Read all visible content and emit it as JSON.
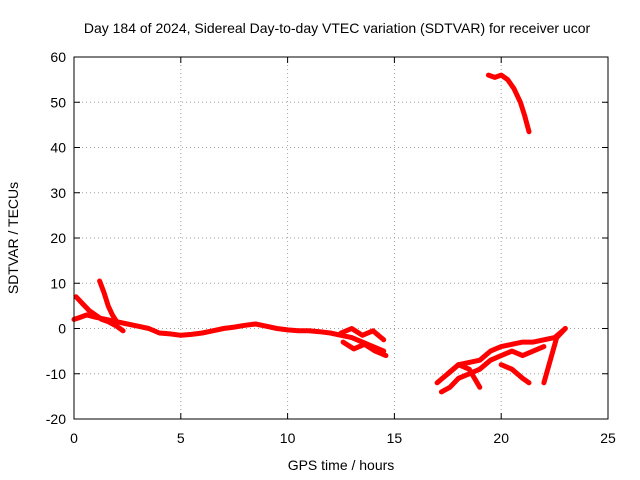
{
  "chart_data": {
    "type": "line",
    "title": "Day 184 of 2024, Sidereal Day-to-day VTEC variation (SDTVAR) for receiver ucor",
    "xlabel": "GPS time / hours",
    "ylabel": "SDTVAR / TECUs",
    "xlim": [
      0,
      25
    ],
    "ylim": [
      -20,
      60
    ],
    "x_ticks": [
      0,
      5,
      10,
      15,
      20,
      25
    ],
    "y_ticks": [
      -20,
      -10,
      0,
      10,
      20,
      30,
      40,
      50,
      60
    ],
    "grid": true,
    "color": "#ff0000",
    "series": [
      {
        "name": "main-arc",
        "x": [
          0,
          0.3,
          0.6,
          1.0,
          1.5,
          2.0,
          2.5,
          3.0,
          3.5,
          4.0,
          4.5,
          5.0,
          5.5,
          6.0,
          6.5,
          7.0,
          7.5,
          8.0,
          8.5,
          9.0,
          9.5,
          10.0,
          10.5,
          11.0,
          11.5,
          12.0,
          12.5,
          13.0,
          13.5,
          14.0,
          14.5
        ],
        "y": [
          2,
          2.5,
          3,
          2.5,
          2,
          1.5,
          1,
          0.5,
          0,
          -1,
          -1.2,
          -1.5,
          -1.3,
          -1,
          -0.5,
          0,
          0.3,
          0.7,
          1,
          0.5,
          0,
          -0.3,
          -0.5,
          -0.5,
          -0.7,
          -1,
          -1.5,
          -2,
          -3,
          -4,
          -5
        ]
      },
      {
        "name": "early-descent",
        "x": [
          0.1,
          0.4,
          0.7,
          1.0,
          1.3,
          1.6,
          2.0,
          2.3
        ],
        "y": [
          7,
          5.5,
          4,
          3,
          2,
          1.5,
          0.5,
          -0.5
        ]
      },
      {
        "name": "early-spike",
        "x": [
          1.2,
          1.4,
          1.6,
          1.8,
          2.0
        ],
        "y": [
          10.5,
          8,
          5,
          3,
          1.5
        ]
      },
      {
        "name": "late-noise-upper",
        "x": [
          12.5,
          13.0,
          13.5,
          14.0,
          14.5
        ],
        "y": [
          -1,
          0,
          -1.5,
          -0.5,
          -2.5
        ]
      },
      {
        "name": "late-noise-lower",
        "x": [
          12.6,
          13.1,
          13.6,
          14.1,
          14.6
        ],
        "y": [
          -3,
          -4.5,
          -3.5,
          -5,
          -6
        ]
      },
      {
        "name": "evening-arc-1",
        "x": [
          17.0,
          17.5,
          18.0,
          18.5,
          19.0,
          19.5,
          20.0,
          20.5,
          21.0,
          21.5,
          22.0,
          22.5,
          23.0
        ],
        "y": [
          -12,
          -10,
          -8,
          -7.5,
          -7,
          -5,
          -4,
          -3.5,
          -3,
          -3,
          -2.5,
          -2,
          0
        ]
      },
      {
        "name": "evening-arc-2",
        "x": [
          17.2,
          17.6,
          18.0,
          18.5,
          19.0,
          19.5,
          20.0,
          20.5,
          21.0,
          21.5,
          22.0
        ],
        "y": [
          -14,
          -13,
          -11,
          -10,
          -9,
          -7,
          -6,
          -5,
          -6,
          -5,
          -4
        ]
      },
      {
        "name": "evening-arc-3",
        "x": [
          17.5,
          18.0,
          18.5,
          19.0
        ],
        "y": [
          -10,
          -8,
          -9,
          -13
        ]
      },
      {
        "name": "evening-dip",
        "x": [
          20.0,
          20.5,
          21.0,
          21.3
        ],
        "y": [
          -8,
          -9,
          -11,
          -12
        ]
      },
      {
        "name": "late-rise",
        "x": [
          22.0,
          22.3,
          22.6,
          23.0
        ],
        "y": [
          -12,
          -7,
          -2,
          0
        ]
      },
      {
        "name": "high-arc",
        "x": [
          19.4,
          19.7,
          20.0,
          20.3,
          20.6,
          20.9,
          21.1,
          21.3
        ],
        "y": [
          56,
          55.5,
          56,
          55,
          53,
          50,
          47,
          43.5
        ]
      }
    ]
  }
}
